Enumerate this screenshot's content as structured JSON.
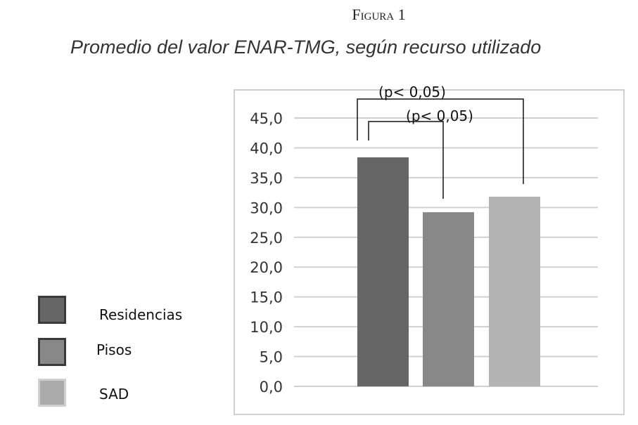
{
  "figure_label": "Figura 1",
  "chart_data": {
    "type": "bar",
    "title": "Promedio del valor ENAR-TMG, según recurso utilizado",
    "categories": [
      "Residencias",
      "Pisos",
      "SAD"
    ],
    "values": [
      38.4,
      29.2,
      31.8
    ],
    "colors": [
      "#666666",
      "#888888",
      "#b3b3b3"
    ],
    "ylim": [
      0,
      45
    ],
    "yticks": [
      "0,0",
      "5,0",
      "10,0",
      "15,0",
      "20,0",
      "25,0",
      "30,0",
      "35,0",
      "40,0",
      "45,0"
    ],
    "grid": true,
    "legend": "left",
    "annotations": [
      {
        "text": "(p< 0,05)",
        "from": "Residencias",
        "to": "SAD"
      },
      {
        "text": "(p< 0,05)",
        "from": "Residencias",
        "to": "Pisos"
      }
    ]
  }
}
